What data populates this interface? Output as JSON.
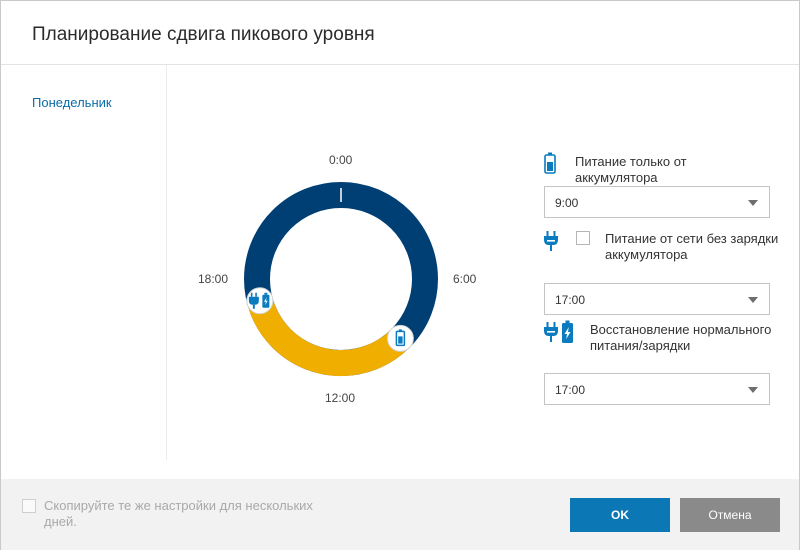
{
  "dialog": {
    "title": "Планирование сдвига пикового уровня"
  },
  "sidebar": {
    "items": [
      {
        "label": "Понедельник"
      }
    ]
  },
  "schedule_chart": {
    "labels": {
      "top": "0:00",
      "right": "6:00",
      "bottom": "12:00",
      "left": "18:00"
    },
    "segments": [
      {
        "mode": "battery-only",
        "start_hour": 9,
        "end_hour": 17,
        "color": "#f0ae00"
      },
      {
        "mode": "normal",
        "start_hour": 17,
        "end_hour": 9,
        "color": "#003f73"
      }
    ],
    "markers": [
      {
        "hour": 9,
        "icon": "battery-icon"
      },
      {
        "hour": 17,
        "icon": "plug-battery-icon"
      }
    ]
  },
  "controls": {
    "battery_only": {
      "icon": "battery-icon",
      "label": "Питание только от аккумулятора",
      "value": "9:00"
    },
    "ac_no_charge": {
      "icon": "plug-icon",
      "label": "Питание от сети без зарядки аккумулятора",
      "checked": false,
      "value": "17:00"
    },
    "restore": {
      "icon": "plug-battery-icon",
      "label": "Восстановление нормального питания/зарядки",
      "value": "17:00"
    }
  },
  "footer": {
    "copy_label": "Скопируйте те же настройки для нескольких дней.",
    "copy_checked": false,
    "ok_label": "OK",
    "cancel_label": "Отмена"
  },
  "colors": {
    "accent": "#0b77b5",
    "ring_normal": "#003f73",
    "ring_battery": "#f0ae00",
    "icon_blue": "#0a7bbf"
  }
}
